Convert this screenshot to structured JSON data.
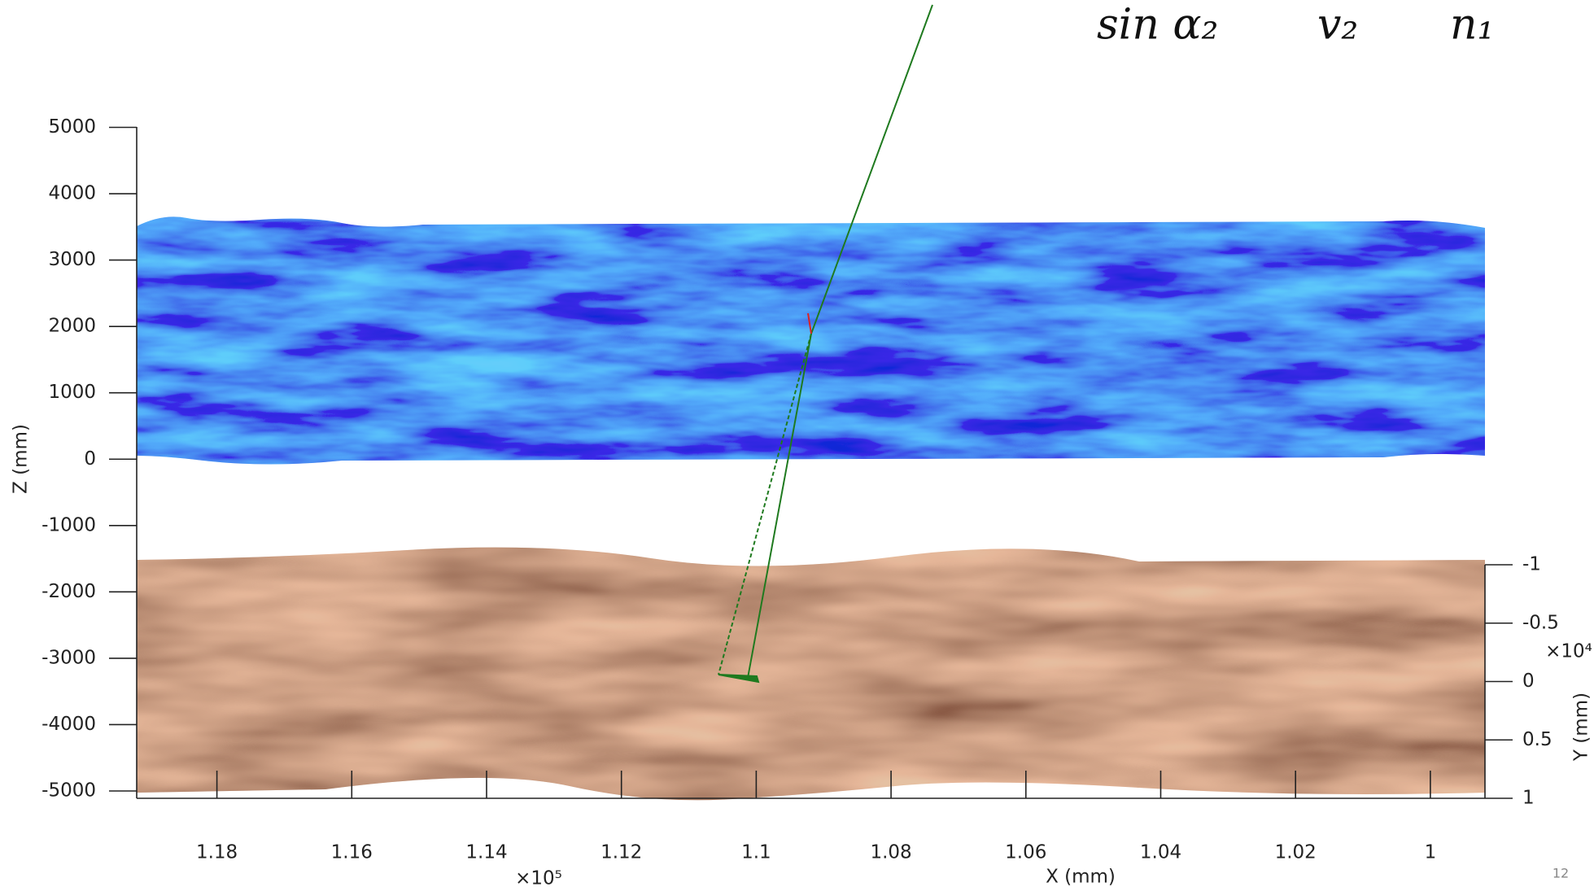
{
  "slide": {
    "formula": [
      "sin α₂",
      "v₂",
      "n₁"
    ],
    "page_number": "12"
  },
  "chart_data": {
    "type": "surface",
    "xlabel": "X (mm)",
    "zlabel": "Z (mm)",
    "ylabel": "Y (mm)",
    "x_exponent_label": "×10⁵",
    "y_exponent_label": "×10⁴",
    "xlim": [
      119190,
      99190
    ],
    "xticks": [
      {
        "value": 118000,
        "label": "1.18"
      },
      {
        "value": 116000,
        "label": "1.16"
      },
      {
        "value": 114000,
        "label": "1.14"
      },
      {
        "value": 112000,
        "label": "1.12"
      },
      {
        "value": 110000,
        "label": "1.1"
      },
      {
        "value": 108000,
        "label": "1.08"
      },
      {
        "value": 106000,
        "label": "1.06"
      },
      {
        "value": 104000,
        "label": "1.04"
      },
      {
        "value": 102000,
        "label": "1.02"
      },
      {
        "value": 100000,
        "label": "1"
      }
    ],
    "zlim": [
      -5000,
      5000
    ],
    "zticks": [
      5000,
      4000,
      3000,
      2000,
      1000,
      0,
      -1000,
      -2000,
      -3000,
      -4000,
      -5000
    ],
    "ylim": [
      -10000,
      10000
    ],
    "yticks": [
      {
        "value": -10000,
        "label": "-1"
      },
      {
        "value": -5000,
        "label": "-0.5"
      },
      0,
      {
        "value": 5000,
        "label": "0.5"
      },
      {
        "value": 10000,
        "label": "1"
      }
    ]
  }
}
